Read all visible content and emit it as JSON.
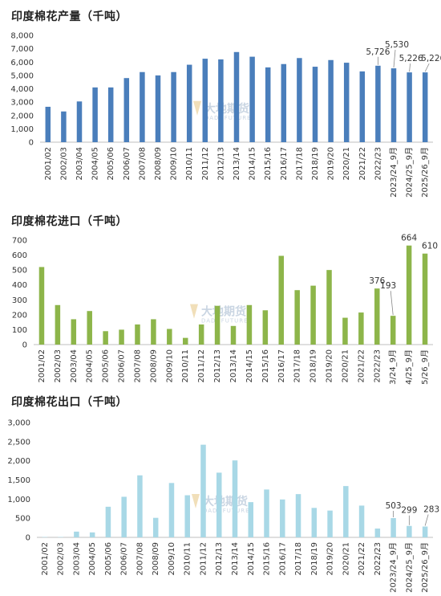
{
  "watermark": {
    "name": "大地期货",
    "sub": "DADI FUTURES"
  },
  "chart_data": [
    {
      "type": "bar",
      "title": "印度棉花产量（千吨）",
      "categories": [
        "2001/02",
        "2002/03",
        "2003/04",
        "2004/05",
        "2005/06",
        "2006/07",
        "2007/08",
        "2008/09",
        "2009/10",
        "2010/11",
        "2011/12",
        "2012/13",
        "2013/14",
        "2014/15",
        "2015/16",
        "2016/17",
        "2017/18",
        "2018/19",
        "2019/20",
        "2020/21",
        "2021/22",
        "2022/23",
        "2023/24_9月",
        "2024/25_9月",
        "2025/26_9月"
      ],
      "values": [
        2650,
        2300,
        3050,
        4100,
        4100,
        4800,
        5250,
        5000,
        5250,
        5800,
        6250,
        6200,
        6750,
        6400,
        5600,
        5850,
        6300,
        5650,
        6150,
        5950,
        5300,
        5726,
        5530,
        5226,
        5226
      ],
      "color": "#4a7ebb",
      "ylim": [
        0,
        8000
      ],
      "yticks": [
        "0",
        "1,000",
        "2,000",
        "3,000",
        "4,000",
        "5,000",
        "6,000",
        "7,000",
        "8,000"
      ],
      "annotations": [
        {
          "index": 21,
          "text": "5,726"
        },
        {
          "index": 22,
          "text": "5,530"
        },
        {
          "index": 23,
          "text": "5,226"
        },
        {
          "index": 24,
          "text": "5,226"
        }
      ]
    },
    {
      "type": "bar",
      "title": "印度棉花进口（千吨）",
      "categories": [
        "2001/02",
        "2002/03",
        "2003/04",
        "2004/05",
        "2005/06",
        "2006/07",
        "2007/08",
        "2008/09",
        "2009/10",
        "2010/11",
        "2011/12",
        "2012/13",
        "2013/14",
        "2014/15",
        "2015/16",
        "2016/17",
        "2017/18",
        "2018/19",
        "2019/20",
        "2020/21",
        "2021/22",
        "2022/23",
        "3/24_9月",
        "4/25_9月",
        "5/26_9月"
      ],
      "values": [
        520,
        265,
        170,
        225,
        90,
        100,
        135,
        170,
        105,
        45,
        135,
        260,
        125,
        265,
        230,
        595,
        365,
        395,
        500,
        180,
        215,
        376,
        193,
        664,
        610
      ],
      "color": "#8db54a",
      "ylim": [
        0,
        700
      ],
      "yticks": [
        "0",
        "100",
        "200",
        "300",
        "400",
        "500",
        "600",
        "700"
      ],
      "annotations": [
        {
          "index": 21,
          "text": "376"
        },
        {
          "index": 22,
          "text": "193"
        },
        {
          "index": 23,
          "text": "664"
        },
        {
          "index": 24,
          "text": "610"
        }
      ]
    },
    {
      "type": "bar",
      "title": "印度棉花出口（千吨）",
      "categories": [
        "2001/02",
        "2002/03",
        "2003/04",
        "2004/05",
        "2005/06",
        "2006/07",
        "2007/08",
        "2008/09",
        "2009/10",
        "2010/11",
        "2011/12",
        "2012/13",
        "2013/14",
        "2014/15",
        "2015/16",
        "2016/17",
        "2017/18",
        "2018/19",
        "2019/20",
        "2020/21",
        "2021/22",
        "2022/23",
        "2023/24_9月",
        "2024/25_9月",
        "2025/26_9月"
      ],
      "values": [
        10,
        10,
        150,
        130,
        800,
        1060,
        1620,
        510,
        1420,
        1100,
        2420,
        1690,
        2010,
        920,
        1250,
        990,
        1130,
        770,
        700,
        1340,
        830,
        230,
        503,
        299,
        283
      ],
      "color": "#a8d8e6",
      "ylim": [
        0,
        3000
      ],
      "yticks": [
        "0",
        "500",
        "1,000",
        "1,500",
        "2,000",
        "2,500",
        "3,000"
      ],
      "annotations": [
        {
          "index": 22,
          "text": "503"
        },
        {
          "index": 23,
          "text": "299"
        },
        {
          "index": 24,
          "text": "283"
        }
      ]
    }
  ]
}
